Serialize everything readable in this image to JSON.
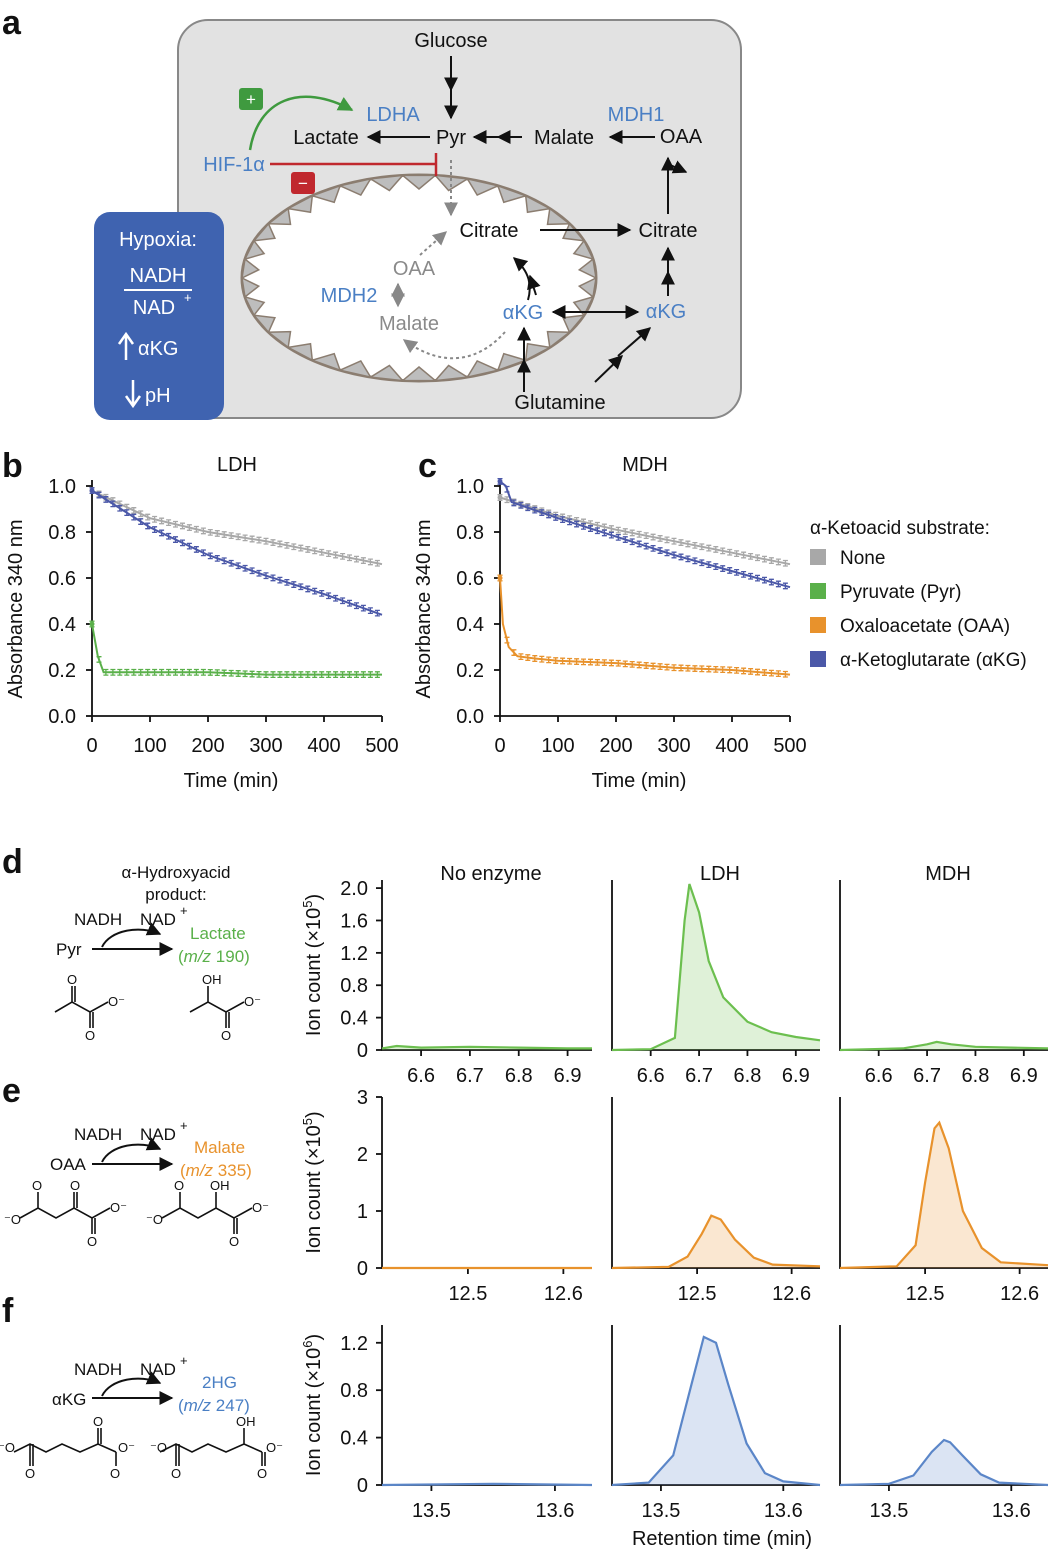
{
  "panel_labels": {
    "a": "a",
    "b": "b",
    "c": "c",
    "d": "d",
    "e": "e",
    "f": "f"
  },
  "colors": {
    "none": "#a8a8a8",
    "pyruvate": "#5ab04a",
    "oxaloacetate": "#e8922c",
    "aketoglutarate": "#4b58a8",
    "lactate_trace": "#6cbf4f",
    "malate_trace": "#e8922c",
    "hg_trace": "#5b86c8",
    "cell_bg": "#e2e2e2",
    "hypoxia_box": "#3f63b0",
    "inhibit": "#c0282e",
    "activate": "#3f9a3f"
  },
  "diagram": {
    "glucose": "Glucose",
    "lactate": "Lactate",
    "pyr": "Pyr",
    "malate_cyto": "Malate",
    "oaa_cyto": "OAA",
    "ldha": "LDHA",
    "mdh1": "MDH1",
    "hif": "HIF-1α",
    "plus": "+",
    "minus": "−",
    "citrate_mito": "Citrate",
    "citrate_cyto": "Citrate",
    "oaa_mito": "OAA",
    "mdh2": "MDH2",
    "malate_mito": "Malate",
    "akg_mito": "αKG",
    "akg_cyto": "αKG",
    "glutamine": "Glutamine",
    "hypoxia": {
      "title": "Hypoxia:",
      "num": "NADH",
      "den": "NAD",
      "den_sup": "+",
      "akg": "αKG",
      "ph": "pH"
    }
  },
  "legend": {
    "title": "α-Ketoacid substrate:",
    "items": [
      "None",
      "Pyruvate (Pyr)",
      "Oxaloacetate (OAA)",
      "α-Ketoglutarate (αKG)"
    ]
  },
  "chart_data": [
    {
      "id": "b",
      "type": "line",
      "title": "LDH",
      "xlabel": "Time (min)",
      "ylabel": "Absorbance 340 nm",
      "xlim": [
        0,
        500
      ],
      "ylim": [
        0,
        1.0
      ],
      "xticks": [
        "0",
        "100",
        "200",
        "300",
        "400",
        "500"
      ],
      "yticks": [
        "0.0",
        "0.2",
        "0.4",
        "0.6",
        "0.8",
        "1.0"
      ],
      "series": [
        {
          "name": "None",
          "x": [
            0,
            100,
            200,
            300,
            400,
            500
          ],
          "y": [
            0.98,
            0.86,
            0.8,
            0.76,
            0.71,
            0.66
          ]
        },
        {
          "name": "α-Ketoglutarate (αKG)",
          "x": [
            0,
            100,
            200,
            300,
            400,
            500
          ],
          "y": [
            0.98,
            0.82,
            0.7,
            0.61,
            0.53,
            0.44
          ]
        },
        {
          "name": "Pyruvate (Pyr)",
          "x": [
            0,
            10,
            20,
            100,
            200,
            300,
            400,
            500
          ],
          "y": [
            0.4,
            0.26,
            0.19,
            0.19,
            0.19,
            0.18,
            0.18,
            0.18
          ]
        }
      ]
    },
    {
      "id": "c",
      "type": "line",
      "title": "MDH",
      "xlabel": "Time (min)",
      "ylabel": "Absorbance 340 nm",
      "xlim": [
        0,
        500
      ],
      "ylim": [
        0,
        1.0
      ],
      "xticks": [
        "0",
        "100",
        "200",
        "300",
        "400",
        "500"
      ],
      "yticks": [
        "0.0",
        "0.2",
        "0.4",
        "0.6",
        "0.8",
        "1.0"
      ],
      "series": [
        {
          "name": "None",
          "x": [
            0,
            100,
            200,
            300,
            400,
            500
          ],
          "y": [
            0.95,
            0.87,
            0.81,
            0.76,
            0.71,
            0.66
          ]
        },
        {
          "name": "α-Ketoglutarate (αKG)",
          "x": [
            0,
            10,
            20,
            100,
            200,
            300,
            400,
            500
          ],
          "y": [
            1.02,
            1.0,
            0.93,
            0.86,
            0.78,
            0.7,
            0.63,
            0.56
          ]
        },
        {
          "name": "Oxaloacetate (OAA)",
          "x": [
            0,
            5,
            15,
            30,
            60,
            100,
            200,
            300,
            400,
            500
          ],
          "y": [
            0.6,
            0.4,
            0.3,
            0.26,
            0.25,
            0.24,
            0.23,
            0.21,
            0.2,
            0.18
          ]
        }
      ]
    },
    {
      "id": "d",
      "type": "area",
      "ylabel": "Ion count (×10",
      "ylabel_sup": "5",
      "ylabel_end": ")",
      "panels": [
        "No enzyme",
        "LDH",
        "MDH"
      ],
      "xticks": [
        "6.6",
        "6.7",
        "6.8",
        "6.9"
      ],
      "xlim": [
        6.52,
        6.95
      ],
      "yticks": [
        "0",
        "0.4",
        "0.8",
        "1.2",
        "1.6",
        "2.0"
      ],
      "ylim": [
        0,
        2.1
      ],
      "traces": [
        {
          "x": [
            6.52,
            6.55,
            6.6,
            6.7,
            6.8,
            6.9,
            6.95
          ],
          "y": [
            0.02,
            0.05,
            0.03,
            0.04,
            0.03,
            0.02,
            0.02
          ]
        },
        {
          "x": [
            6.52,
            6.6,
            6.65,
            6.67,
            6.68,
            6.7,
            6.72,
            6.75,
            6.8,
            6.85,
            6.9,
            6.95
          ],
          "y": [
            0.0,
            0.01,
            0.15,
            1.6,
            2.05,
            1.7,
            1.1,
            0.65,
            0.35,
            0.22,
            0.16,
            0.12
          ]
        },
        {
          "x": [
            6.52,
            6.65,
            6.7,
            6.72,
            6.75,
            6.8,
            6.95
          ],
          "y": [
            0.0,
            0.02,
            0.07,
            0.1,
            0.07,
            0.04,
            0.02
          ]
        }
      ]
    },
    {
      "id": "e",
      "type": "area",
      "ylabel": "Ion count (×10",
      "ylabel_sup": "5",
      "ylabel_end": ")",
      "xticks": [
        "12.5",
        "12.6"
      ],
      "xlim": [
        12.41,
        12.63
      ],
      "yticks": [
        "0",
        "1",
        "2",
        "3"
      ],
      "ylim": [
        0,
        3
      ],
      "traces": [
        {
          "x": [
            12.41,
            12.63
          ],
          "y": [
            0.0,
            0.0
          ]
        },
        {
          "x": [
            12.41,
            12.47,
            12.49,
            12.505,
            12.515,
            12.525,
            12.54,
            12.56,
            12.58,
            12.63
          ],
          "y": [
            0.0,
            0.02,
            0.2,
            0.6,
            0.92,
            0.85,
            0.5,
            0.18,
            0.06,
            0.03
          ]
        },
        {
          "x": [
            12.41,
            12.47,
            12.49,
            12.5,
            12.51,
            12.515,
            12.525,
            12.54,
            12.56,
            12.58,
            12.63
          ],
          "y": [
            0.0,
            0.03,
            0.4,
            1.5,
            2.45,
            2.55,
            2.1,
            1.0,
            0.35,
            0.1,
            0.05
          ]
        }
      ]
    },
    {
      "id": "f",
      "type": "area",
      "ylabel": "Ion count (×10",
      "ylabel_sup": "6",
      "ylabel_end": ")",
      "xticks": [
        "13.5",
        "13.6"
      ],
      "xlim": [
        13.46,
        13.63
      ],
      "yticks": [
        "0",
        "0.4",
        "0.8",
        "1.2"
      ],
      "ylim": [
        0,
        1.35
      ],
      "xlabel": "Retention time (min)",
      "traces": [
        {
          "x": [
            13.46,
            13.55,
            13.63
          ],
          "y": [
            0.0,
            0.01,
            0.0
          ]
        },
        {
          "x": [
            13.46,
            13.49,
            13.51,
            13.525,
            13.535,
            13.545,
            13.555,
            13.57,
            13.585,
            13.6,
            13.63
          ],
          "y": [
            0.0,
            0.02,
            0.25,
            0.85,
            1.25,
            1.2,
            0.85,
            0.35,
            0.1,
            0.03,
            0.0
          ]
        },
        {
          "x": [
            13.46,
            13.5,
            13.52,
            13.535,
            13.545,
            13.55,
            13.56,
            13.575,
            13.59,
            13.63
          ],
          "y": [
            0.0,
            0.01,
            0.08,
            0.28,
            0.38,
            0.36,
            0.25,
            0.09,
            0.02,
            0.0
          ]
        }
      ]
    }
  ],
  "reactions": {
    "d": {
      "header1": "α-Hydroxyacid",
      "header2": "product:",
      "nadh": "NADH",
      "nad": "NAD",
      "nad_sup": "+",
      "substrate": "Pyr",
      "product": "Lactate",
      "mz_pre": "(",
      "mz_i": "m/z",
      "mz": " 190)",
      "o_left": "O",
      "o_right": "O",
      "ominus": "O",
      "ominus2": "O",
      "oh": "OH"
    },
    "e": {
      "nadh": "NADH",
      "nad": "NAD",
      "nad_sup": "+",
      "substrate": "OAA",
      "product": "Malate",
      "mz_pre": "(",
      "mz_i": "m/z",
      "mz": " 335)",
      "oh": "OH"
    },
    "f": {
      "nadh": "NADH",
      "nad": "NAD",
      "nad_sup": "+",
      "substrate": "αKG",
      "product": "2HG",
      "mz_pre": "(",
      "mz_i": "m/z",
      "mz": " 247)",
      "oh": "OH"
    }
  },
  "atoms": {
    "O": "O",
    "Ominus": "O⁻",
    "minusO": "⁻O",
    "OH": "OH"
  }
}
